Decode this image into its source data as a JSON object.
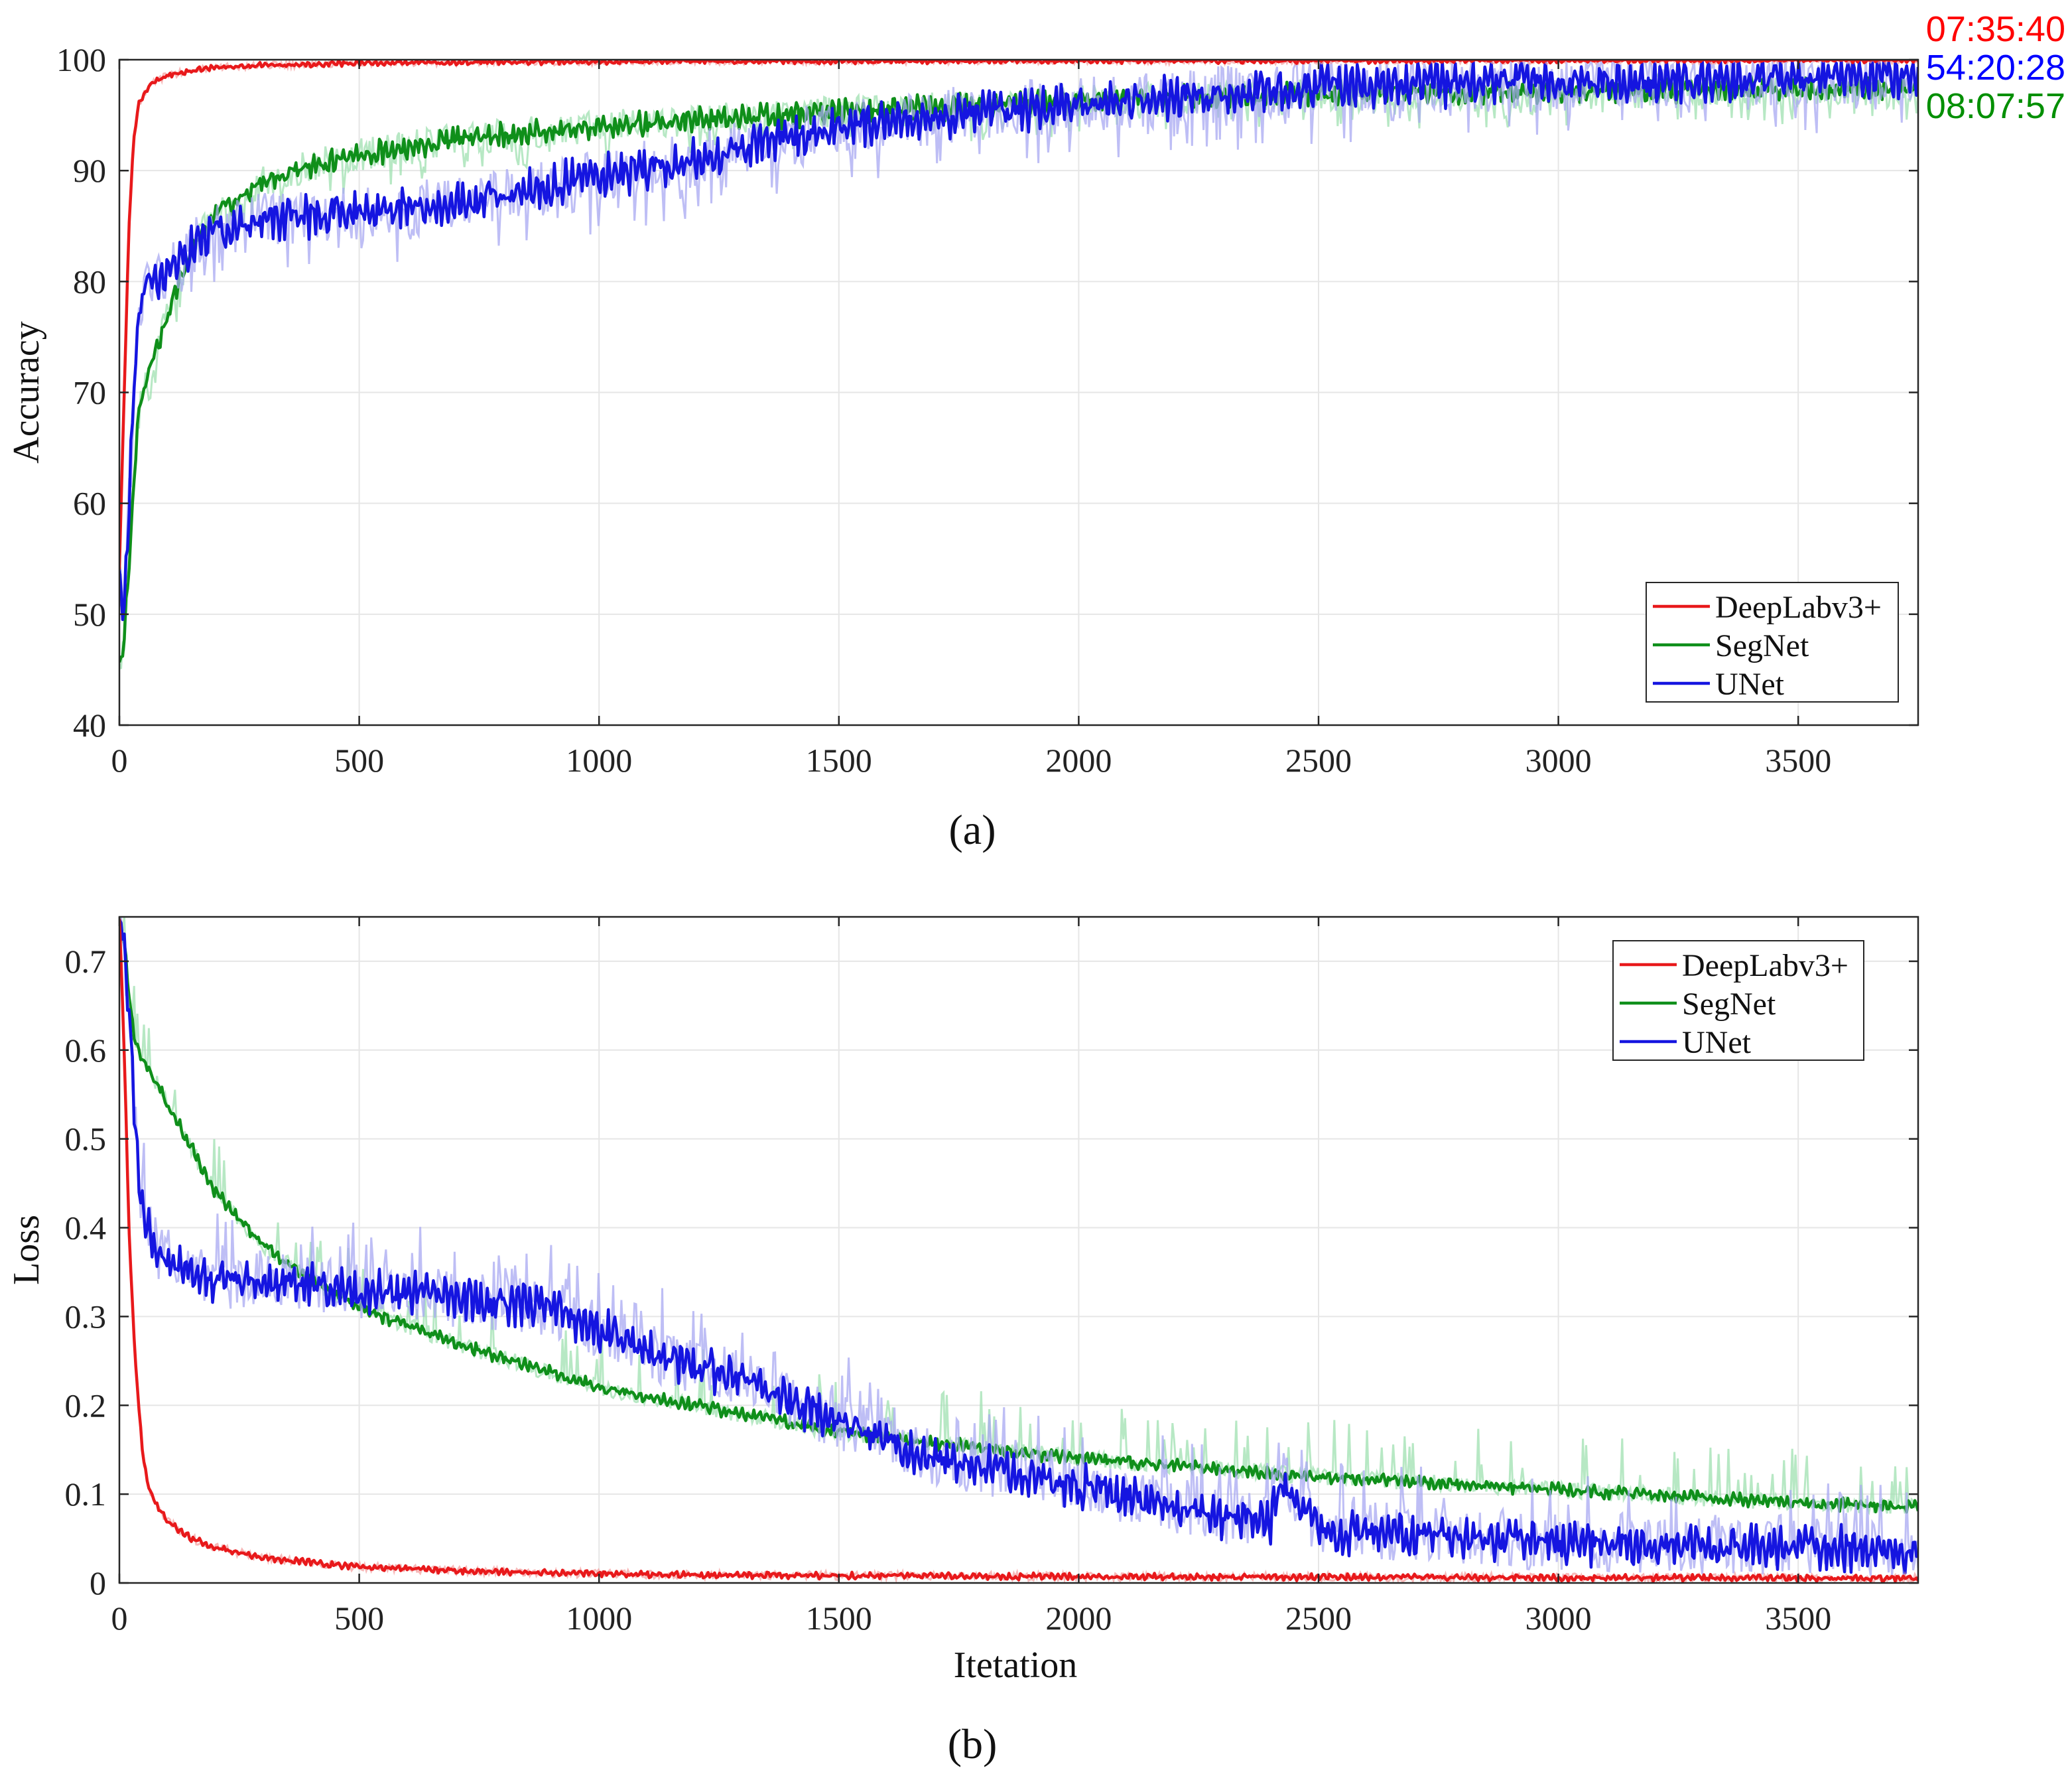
{
  "chart_data": [
    {
      "id": "accuracy",
      "type": "line",
      "caption": "(a)",
      "xlabel": "",
      "ylabel": "Accuracy",
      "xlim": [
        0,
        3750
      ],
      "ylim": [
        40,
        100
      ],
      "x_ticks": [
        0,
        500,
        1000,
        1500,
        2000,
        2500,
        3000,
        3500
      ],
      "y_ticks": [
        40,
        50,
        60,
        70,
        80,
        90,
        100
      ],
      "grid": true,
      "legend_position": "bottom-right",
      "series": [
        {
          "name": "DeepLabv3+",
          "color": "#e8191b",
          "band_color": "#f4a0a0",
          "x": [
            0,
            10,
            20,
            30,
            40,
            60,
            80,
            100,
            150,
            200,
            300,
            500,
            800,
            1200,
            2000,
            3000,
            3750
          ],
          "values": [
            54,
            70,
            85,
            93,
            96,
            97.5,
            98.2,
            98.6,
            99,
            99.3,
            99.5,
            99.7,
            99.8,
            99.85,
            99.9,
            99.95,
            99.97
          ],
          "noise": 0.2,
          "spike": 0
        },
        {
          "name": "SegNet",
          "color": "#0f8f1a",
          "band_color": "#9fe0b0",
          "x": [
            0,
            10,
            20,
            30,
            40,
            60,
            80,
            100,
            150,
            200,
            300,
            400,
            500,
            700,
            1000,
            1500,
            2000,
            2500,
            3000,
            3500,
            3750
          ],
          "values": [
            45,
            48,
            55,
            62,
            68,
            72,
            74,
            77,
            83,
            86,
            89,
            90.5,
            91.5,
            92.8,
            94,
            95.3,
            96.3,
            96.9,
            97.2,
            97.4,
            97.5
          ],
          "noise": 0.9,
          "spike": 2.5
        },
        {
          "name": "UNet",
          "color": "#1515e0",
          "band_color": "#a8a8f2",
          "x": [
            0,
            10,
            20,
            30,
            40,
            60,
            80,
            100,
            150,
            200,
            300,
            400,
            500,
            700,
            1000,
            1200,
            1500,
            1800,
            2000,
            2400,
            2500,
            3000,
            3500,
            3750
          ],
          "values": [
            53,
            50,
            60,
            70,
            78,
            80,
            80.5,
            81,
            83,
            84.5,
            85.5,
            86,
            86.2,
            87,
            89.5,
            91,
            94,
            95.3,
            96,
            97.2,
            97.6,
            98,
            98.4,
            98.6
          ],
          "noise": 1.6,
          "spike": 4
        }
      ],
      "timers": [
        {
          "label": "07:35:40",
          "color": "#ff0000"
        },
        {
          "label": "54:20:28",
          "color": "#0000ff"
        },
        {
          "label": "08:07:57",
          "color": "#008f00"
        }
      ]
    },
    {
      "id": "loss",
      "type": "line",
      "caption": "(b)",
      "xlabel": "Itetation",
      "ylabel": "Loss",
      "xlim": [
        0,
        3750
      ],
      "ylim": [
        0,
        0.75
      ],
      "x_ticks": [
        0,
        500,
        1000,
        1500,
        2000,
        2500,
        3000,
        3500
      ],
      "y_ticks": [
        0,
        0.1,
        0.2,
        0.3,
        0.4,
        0.5,
        0.6,
        0.7
      ],
      "grid": true,
      "legend_position": "top-right",
      "series": [
        {
          "name": "DeepLabv3+",
          "color": "#e8191b",
          "band_color": "#f4a0a0",
          "x": [
            0,
            10,
            20,
            30,
            40,
            50,
            60,
            80,
            100,
            150,
            200,
            300,
            500,
            800,
            1200,
            2000,
            3000,
            3750
          ],
          "values": [
            0.75,
            0.6,
            0.4,
            0.28,
            0.2,
            0.14,
            0.11,
            0.085,
            0.07,
            0.05,
            0.04,
            0.028,
            0.018,
            0.012,
            0.009,
            0.007,
            0.006,
            0.005
          ],
          "noise": 0.003,
          "spike": 0
        },
        {
          "name": "SegNet",
          "color": "#0f8f1a",
          "band_color": "#9fe0b0",
          "x": [
            0,
            10,
            20,
            30,
            40,
            60,
            100,
            150,
            200,
            300,
            400,
            500,
            700,
            1000,
            1300,
            1500,
            2000,
            2500,
            3000,
            3500,
            3750
          ],
          "values": [
            0.75,
            0.72,
            0.66,
            0.62,
            0.6,
            0.58,
            0.54,
            0.49,
            0.44,
            0.38,
            0.34,
            0.31,
            0.27,
            0.22,
            0.19,
            0.17,
            0.14,
            0.12,
            0.105,
            0.09,
            0.085
          ],
          "noise": 0.006,
          "spike": 0.05
        },
        {
          "name": "UNet",
          "color": "#1515e0",
          "band_color": "#a8a8f2",
          "x": [
            0,
            10,
            20,
            30,
            40,
            50,
            60,
            80,
            100,
            150,
            200,
            300,
            400,
            500,
            700,
            900,
            1100,
            1300,
            1500,
            1700,
            2000,
            2300,
            2400,
            2420,
            2500,
            3000,
            3500,
            3750
          ],
          "values": [
            0.75,
            0.72,
            0.65,
            0.55,
            0.45,
            0.42,
            0.4,
            0.37,
            0.36,
            0.35,
            0.34,
            0.34,
            0.335,
            0.33,
            0.32,
            0.31,
            0.26,
            0.23,
            0.18,
            0.14,
            0.11,
            0.075,
            0.065,
            0.12,
            0.06,
            0.045,
            0.04,
            0.035
          ],
          "noise": 0.02,
          "spike": 0.06
        }
      ]
    }
  ]
}
